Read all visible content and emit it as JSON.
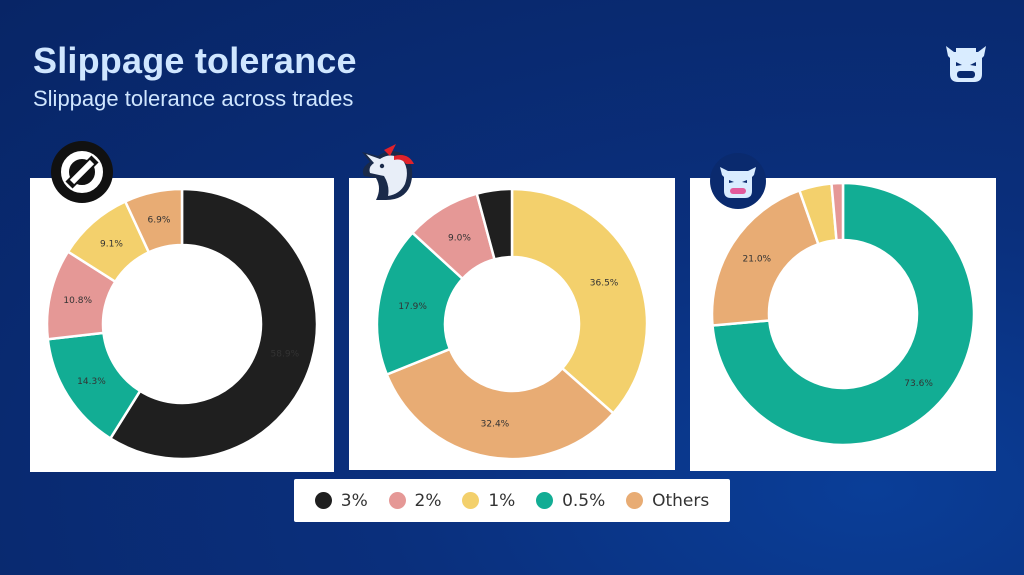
{
  "header": {
    "title": "Slippage tolerance",
    "subtitle": "Slippage tolerance across trades"
  },
  "icons": {
    "corner": "cow-logo-icon",
    "panel_1": "0x-logo-icon",
    "panel_2": "1inch-unicorn-logo-icon",
    "panel_3": "cow-logo-icon"
  },
  "colors": {
    "3%": "#1f1f1f",
    "2%": "#e59896",
    "1%": "#f3d06c",
    "0.5%": "#12ad94",
    "Others": "#e8ac74"
  },
  "legend": [
    {
      "label": "3%",
      "color": "#1f1f1f"
    },
    {
      "label": "2%",
      "color": "#e59896"
    },
    {
      "label": "1%",
      "color": "#f3d06c"
    },
    {
      "label": "0.5%",
      "color": "#12ad94"
    },
    {
      "label": "Others",
      "color": "#e8ac74"
    }
  ],
  "chart_data": [
    {
      "type": "pie",
      "donut": true,
      "title": "",
      "series": [
        {
          "category": "3%",
          "value": 58.9,
          "label": "58.9%"
        },
        {
          "category": "0.5%",
          "value": 14.3,
          "label": "14.3%"
        },
        {
          "category": "2%",
          "value": 10.8,
          "label": "10.8%"
        },
        {
          "category": "1%",
          "value": 9.1,
          "label": "9.1%"
        },
        {
          "category": "Others",
          "value": 6.9,
          "label": "6.9%"
        }
      ]
    },
    {
      "type": "pie",
      "donut": true,
      "title": "",
      "series": [
        {
          "category": "1%",
          "value": 36.5,
          "label": "36.5%"
        },
        {
          "category": "Others",
          "value": 32.4,
          "label": "32.4%"
        },
        {
          "category": "0.5%",
          "value": 17.9,
          "label": "17.9%"
        },
        {
          "category": "2%",
          "value": 9.0,
          "label": "9.0%"
        },
        {
          "category": "3%",
          "value": 4.2,
          "label": ""
        }
      ]
    },
    {
      "type": "pie",
      "donut": true,
      "title": "",
      "series": [
        {
          "category": "0.5%",
          "value": 73.6,
          "label": "73.6%"
        },
        {
          "category": "Others",
          "value": 21.0,
          "label": "21.0%"
        },
        {
          "category": "1%",
          "value": 4.0,
          "label": ""
        },
        {
          "category": "2%",
          "value": 1.4,
          "label": ""
        }
      ]
    }
  ]
}
